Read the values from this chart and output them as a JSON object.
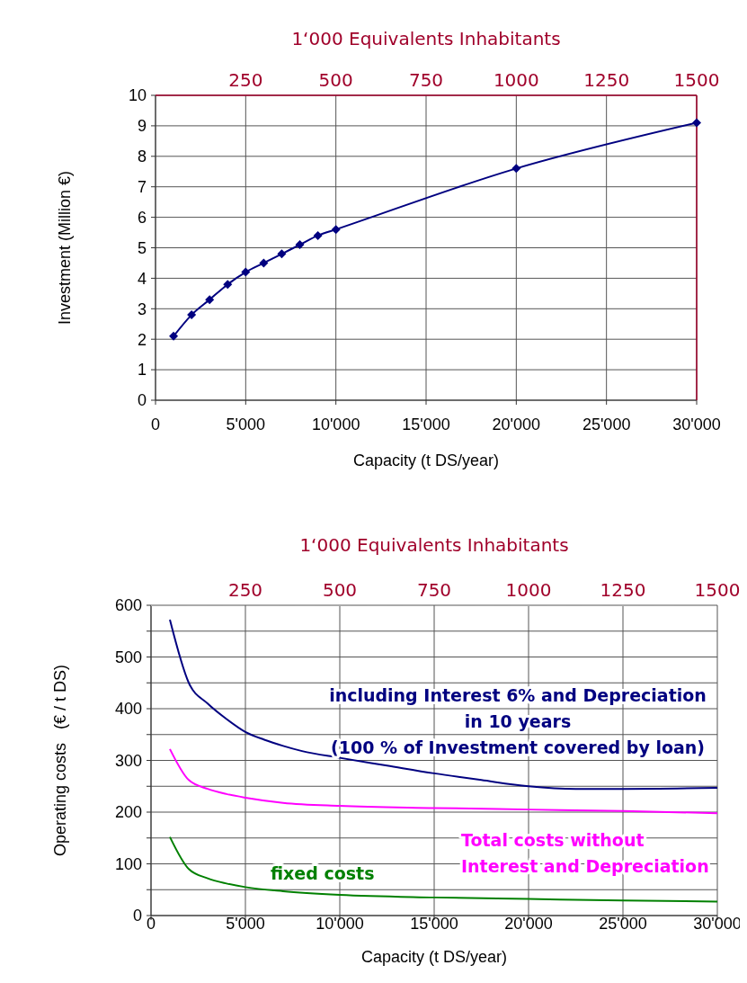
{
  "chart_data": [
    {
      "type": "line",
      "xlabel": "Capacity  (t DS/year)",
      "ylabel": "Investment (Million €)",
      "x2label": "1‘000 Equivalents Inhabitants",
      "xlim": [
        0,
        30000
      ],
      "xticks": [
        0,
        {
          "value": 5000,
          "label": "5'000"
        },
        {
          "value": 10000,
          "label": "10'000"
        },
        {
          "value": 15000,
          "label": "15'000"
        },
        {
          "value": 20000,
          "label": "20'000"
        },
        {
          "value": 25000,
          "label": "25'000"
        },
        {
          "value": 30000,
          "label": "30'000"
        }
      ],
      "ylim": [
        0,
        10
      ],
      "yticks": [
        0,
        1,
        2,
        3,
        4,
        5,
        6,
        7,
        8,
        9,
        10
      ],
      "x2lim": [
        0,
        1500
      ],
      "x2ticks": [
        250,
        500,
        750,
        1000,
        1250,
        1500
      ],
      "grid": true,
      "marker": "diamond",
      "line_style": "solid",
      "series": [
        {
          "color": "#000080",
          "x": [
            1000,
            2000,
            3000,
            4000,
            5000,
            6000,
            7000,
            8000,
            9000,
            10000,
            20000,
            30000
          ],
          "values": [
            2.1,
            2.8,
            3.3,
            3.8,
            4.2,
            4.5,
            4.8,
            5.1,
            5.4,
            5.6,
            7.6,
            9.1
          ]
        }
      ]
    },
    {
      "type": "line",
      "xlabel": "Capacity (t DS/year)",
      "ylabel": "Operating costs   (€ / t DS)",
      "x2label": "1‘000 Equivalents Inhabitants",
      "xlim": [
        0,
        30000
      ],
      "xticks": [
        0,
        {
          "value": 5000,
          "label": "5'000"
        },
        {
          "value": 10000,
          "label": "10'000"
        },
        {
          "value": 15000,
          "label": "15'000"
        },
        {
          "value": 20000,
          "label": "20'000"
        },
        {
          "value": 25000,
          "label": "25'000"
        },
        {
          "value": 30000,
          "label": "30'000"
        }
      ],
      "ylim": [
        0,
        600
      ],
      "yticks": [
        0,
        {
          "value": 50,
          "label": null
        },
        100,
        {
          "value": 150,
          "label": null
        },
        200,
        {
          "value": 250,
          "label": null
        },
        300,
        {
          "value": 350,
          "label": null
        },
        400,
        {
          "value": 450,
          "label": null
        },
        500,
        {
          "value": 550,
          "label": null
        },
        600
      ],
      "x2lim": [
        0,
        1500
      ],
      "x2ticks": [
        250,
        500,
        750,
        1000,
        1250,
        1500
      ],
      "grid": true,
      "marker": "none",
      "line_style": "solid",
      "series": [
        {
          "name": "including Interest 6% and Depreciation\nin 10 years\n(100 % of Investment covered by loan)",
          "color": "#000080",
          "x": [
            1000,
            2000,
            3000,
            4000,
            5000,
            6000,
            7000,
            8000,
            10000,
            12500,
            15000,
            17500,
            20000,
            22500,
            25000,
            30000
          ],
          "values": [
            572,
            450,
            410,
            380,
            355,
            340,
            328,
            318,
            305,
            290,
            275,
            262,
            250,
            245,
            245,
            247
          ]
        },
        {
          "name": "Total costs without\nInterest and Depreciation",
          "color": "#ff00ff",
          "x": [
            1000,
            2000,
            3000,
            4000,
            5000,
            7000,
            10000,
            15000,
            20000,
            25000,
            30000
          ],
          "values": [
            322,
            262,
            245,
            235,
            228,
            218,
            212,
            208,
            205,
            202,
            198
          ]
        },
        {
          "name": "fixed costs",
          "color": "#008000",
          "x": [
            1000,
            2000,
            3000,
            4000,
            5000,
            7000,
            10000,
            15000,
            20000,
            25000,
            30000
          ],
          "values": [
            152,
            90,
            72,
            62,
            55,
            47,
            40,
            35,
            32,
            29,
            27
          ]
        }
      ]
    }
  ]
}
